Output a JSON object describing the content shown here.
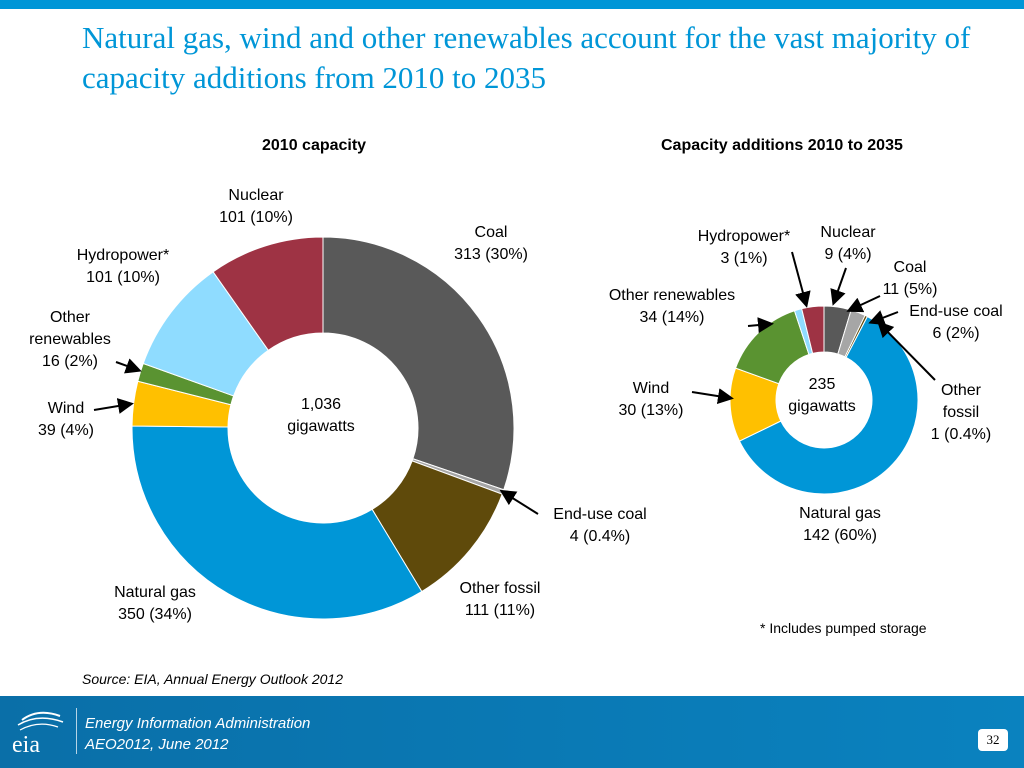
{
  "slide": {
    "title": "Natural gas, wind and other renewables account for the vast majority of capacity additions from 2010 to 2035",
    "footnote": "* Includes pumped storage",
    "source": "Source:  EIA, Annual Energy Outlook 2012",
    "footer_line1": "Energy Information Administration",
    "footer_line2": "AEO2012, June 2012",
    "page_number": "32",
    "logo_text": "eia"
  },
  "colors": {
    "accent": "#0096d7",
    "Coal": "#595959",
    "End-use coal": "#a6a6a6",
    "Other fossil": "#5f4a0b",
    "Natural gas": "#0096d7",
    "Wind": "#ffc000",
    "Other renewables": "#5a9331",
    "Hydropower*": "#8fdcff",
    "Nuclear": "#9e3344"
  },
  "chart_data": [
    {
      "type": "pie",
      "title": "2010 capacity",
      "center_label": [
        "1,036",
        "gigawatts"
      ],
      "start_label": "Coal",
      "slices": [
        {
          "name": "Coal",
          "value": 313,
          "pct": "30%",
          "lines": [
            "Coal",
            "313  (30%)"
          ]
        },
        {
          "name": "End-use coal",
          "value": 4,
          "pct": "0.4%",
          "lines": [
            "End-use coal",
            "4  (0.4%)"
          ]
        },
        {
          "name": "Other fossil",
          "value": 111,
          "pct": "11%",
          "lines": [
            "Other fossil",
            "111  (11%)"
          ]
        },
        {
          "name": "Natural gas",
          "value": 350,
          "pct": "34%",
          "lines": [
            "Natural gas",
            "350  (34%)"
          ]
        },
        {
          "name": "Wind",
          "value": 39,
          "pct": "4%",
          "lines": [
            "Wind",
            "39  (4%)"
          ]
        },
        {
          "name": "Other renewables",
          "value": 16,
          "pct": "2%",
          "lines": [
            "Other",
            "renewables",
            "16  (2%)"
          ]
        },
        {
          "name": "Hydropower*",
          "value": 101,
          "pct": "10%",
          "lines": [
            "Hydropower*",
            "101  (10%)"
          ]
        },
        {
          "name": "Nuclear",
          "value": 101,
          "pct": "10%",
          "lines": [
            "Nuclear",
            "101  (10%)"
          ]
        }
      ]
    },
    {
      "type": "pie",
      "title": "Capacity additions 2010 to 2035",
      "center_label": [
        "235",
        "gigawatts"
      ],
      "slices": [
        {
          "name": "Coal",
          "value": 11,
          "pct": "5%",
          "lines": [
            "Coal",
            "11  (5%)"
          ]
        },
        {
          "name": "End-use coal",
          "value": 6,
          "pct": "2%",
          "lines": [
            "End-use coal",
            "6  (2%)"
          ]
        },
        {
          "name": "Other fossil",
          "value": 1,
          "pct": "0.4%",
          "lines": [
            "Other",
            "fossil",
            "1  (0.4%)"
          ]
        },
        {
          "name": "Natural gas",
          "value": 142,
          "pct": "60%",
          "lines": [
            "Natural gas",
            "142  (60%)"
          ]
        },
        {
          "name": "Wind",
          "value": 30,
          "pct": "13%",
          "lines": [
            "Wind",
            "30  (13%)"
          ]
        },
        {
          "name": "Other renewables",
          "value": 34,
          "pct": "14%",
          "lines": [
            "Other renewables",
            "34  (14%)"
          ]
        },
        {
          "name": "Hydropower*",
          "value": 3,
          "pct": "1%",
          "lines": [
            "Hydropower*",
            "3  (1%)"
          ]
        },
        {
          "name": "Nuclear",
          "value": 9,
          "pct": "4%",
          "lines": [
            "Nuclear",
            "9 (4%)"
          ]
        }
      ]
    }
  ]
}
